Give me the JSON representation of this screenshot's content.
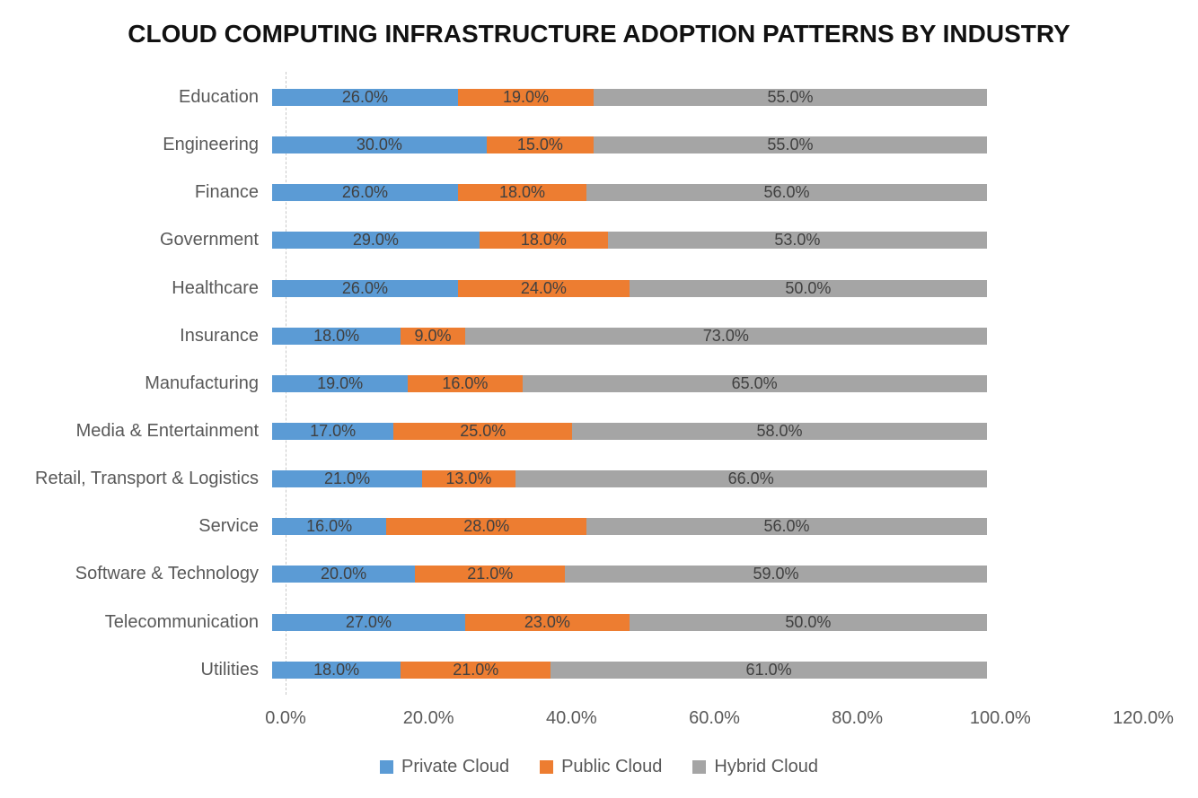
{
  "title": "CLOUD COMPUTING INFRASTRUCTURE ADOPTION PATTERNS BY INDUSTRY",
  "chart_data": {
    "type": "bar",
    "orientation": "horizontal",
    "stacked": true,
    "title": "CLOUD COMPUTING INFRASTRUCTURE ADOPTION PATTERNS BY INDUSTRY",
    "categories": [
      "Education",
      "Engineering",
      "Finance",
      "Government",
      "Healthcare",
      "Insurance",
      "Manufacturing",
      "Media & Entertainment",
      "Retail, Transport & Logistics",
      "Service",
      "Software & Technology",
      "Telecommunication",
      "Utilities"
    ],
    "series": [
      {
        "name": "Private Cloud",
        "color": "#5B9BD5",
        "values": [
          26.0,
          30.0,
          26.0,
          29.0,
          26.0,
          18.0,
          19.0,
          17.0,
          21.0,
          16.0,
          20.0,
          27.0,
          18.0
        ]
      },
      {
        "name": "Public Cloud",
        "color": "#ED7D31",
        "values": [
          19.0,
          15.0,
          18.0,
          18.0,
          24.0,
          9.0,
          16.0,
          25.0,
          13.0,
          28.0,
          21.0,
          23.0,
          21.0
        ]
      },
      {
        "name": "Hybrid Cloud",
        "color": "#A5A5A5",
        "values": [
          55.0,
          55.0,
          56.0,
          53.0,
          50.0,
          73.0,
          65.0,
          58.0,
          66.0,
          56.0,
          59.0,
          50.0,
          61.0
        ]
      }
    ],
    "x_axis": {
      "min": 0,
      "max": 120,
      "ticks": [
        "0.0%",
        "20.0%",
        "40.0%",
        "60.0%",
        "80.0%",
        "100.0%",
        "120.0%"
      ]
    },
    "data_label_format": "0.0%",
    "legend": [
      "Private Cloud",
      "Public Cloud",
      "Hybrid Cloud"
    ],
    "legend_position": "bottom",
    "grid": false
  }
}
